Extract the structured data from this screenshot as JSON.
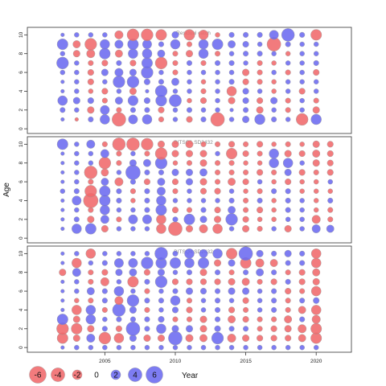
{
  "chart_data": {
    "type": "bubble",
    "ylabel": "Age",
    "xlabel": "Year",
    "x_ticks": [
      2005,
      2010,
      2015,
      2020
    ],
    "y_ticks": [
      0,
      2,
      4,
      6,
      8,
      10
    ],
    "xlim": [
      1999.5,
      2022.5
    ],
    "ylim": [
      -0.5,
      10.8
    ],
    "colors": {
      "negative": "#f0696b",
      "positive": "#6b6af0",
      "outline": "#999999"
    },
    "legend": {
      "values": [
        -6,
        -4,
        -2,
        0,
        2,
        4,
        6
      ],
      "labels": [
        "-6",
        "-4",
        "-2",
        "0",
        "2",
        "4",
        "6"
      ],
      "title": "Year"
    },
    "panels": [
      {
        "title": "Residual catch",
        "years": [
          2002,
          2003,
          2004,
          2005,
          2006,
          2007,
          2008,
          2009,
          2010,
          2011,
          2012,
          2013,
          2014,
          2015,
          2016,
          2017,
          2018,
          2019,
          2020
        ],
        "ages": [
          1,
          2,
          3,
          4,
          5,
          6,
          7,
          8,
          9,
          10
        ],
        "residuals": [
          [
            0.3,
            -0.3,
            0.6,
            2.0,
            -4.0,
            1.8,
            2.0,
            -0.6,
            0.5,
            -0.8,
            0.6,
            -4.0,
            0.5,
            1.0,
            2.3,
            0.6,
            0.5,
            -3.0,
            2.3
          ],
          [
            0.6,
            0.5,
            -1.0,
            1.8,
            -0.6,
            0.6,
            0.6,
            -0.8,
            0.5,
            0.6,
            0.5,
            0.5,
            0.3,
            0.6,
            -1.0,
            0.5,
            -0.6,
            0.5,
            -1.0
          ],
          [
            2.0,
            1.0,
            0.8,
            -0.6,
            1.2,
            2.2,
            0.8,
            2.6,
            3.2,
            -0.5,
            -0.8,
            0.5,
            -1.0,
            0.8,
            -0.8,
            1.0,
            -0.6,
            0.5,
            -0.6
          ],
          [
            0.3,
            0.5,
            -0.5,
            -0.8,
            0.5,
            -1.0,
            0.3,
            3.0,
            0.5,
            0.5,
            -0.6,
            0.5,
            -2.0,
            0.8,
            0.5,
            -0.5,
            0.5,
            -0.8,
            0.5
          ],
          [
            0.3,
            0.5,
            -0.8,
            0.5,
            3.0,
            3.0,
            0.8,
            0.6,
            1.2,
            0.5,
            -0.5,
            0.5,
            0.6,
            -0.8,
            -0.6,
            -0.5,
            0.5,
            0.5,
            0.5
          ],
          [
            0.5,
            0.5,
            -0.8,
            1.0,
            1.5,
            1.0,
            3.0,
            0.5,
            -0.6,
            0.5,
            0.5,
            0.5,
            0.5,
            -1.0,
            -0.6,
            0.5,
            -0.6,
            0.5,
            -0.8
          ],
          [
            3.0,
            0.5,
            -0.6,
            -0.8,
            0.6,
            -0.8,
            2.5,
            -3.0,
            -0.6,
            0.6,
            -0.6,
            0.6,
            0.6,
            0.5,
            -0.6,
            -0.5,
            0.5,
            0.5,
            0.6
          ],
          [
            0.5,
            -1.0,
            -1.5,
            2.5,
            -1.2,
            2.0,
            2.0,
            1.2,
            -0.6,
            -1.0,
            2.0,
            -0.6,
            0.5,
            0.6,
            0.6,
            0.5,
            -0.5,
            0.5,
            0.5
          ],
          [
            2.5,
            -1.2,
            -3.0,
            2.0,
            1.5,
            2.5,
            1.8,
            0.6,
            2.0,
            -0.6,
            2.0,
            2.5,
            1.2,
            0.8,
            0.5,
            -4.0,
            0.6,
            0.5,
            0.5
          ],
          [
            0.3,
            0.5,
            0.5,
            0.5,
            -1.5,
            -3.0,
            -3.0,
            -2.5,
            1.0,
            -2.5,
            -2.0,
            -0.5,
            0.6,
            0.6,
            0.6,
            1.8,
            3.5,
            0.6,
            -2.5
          ]
        ]
      },
      {
        "title": "BITSQ1.SD2432",
        "years": [
          2002,
          2003,
          2004,
          2005,
          2006,
          2007,
          2008,
          2009,
          2010,
          2011,
          2012,
          2013,
          2014,
          2015,
          2016,
          2017,
          2018,
          2019,
          2020,
          2021
        ],
        "ages": [
          1,
          2,
          3,
          4,
          5,
          6,
          7,
          8,
          9,
          10
        ],
        "residuals": [
          [
            0.3,
            2.0,
            2.5,
            -1.0,
            0.5,
            0.5,
            0.5,
            -2.0,
            -4.0,
            -1.0,
            -1.5,
            -2.0,
            0.5,
            -1.0,
            -0.6,
            0.5,
            -1.0,
            0.5,
            1.5,
            1.2
          ],
          [
            0.3,
            0.6,
            -1.0,
            1.5,
            -0.6,
            1.8,
            1.8,
            -2.0,
            0.6,
            2.5,
            1.0,
            -1.0,
            3.0,
            -0.8,
            -0.5,
            -0.5,
            0.5,
            0.5,
            -1.5,
            -0.6
          ],
          [
            0.3,
            0.5,
            -0.6,
            2.0,
            0.5,
            0.5,
            0.6,
            2.5,
            -0.8,
            -0.6,
            0.6,
            -0.8,
            1.2,
            -0.6,
            -0.8,
            -0.5,
            0.6,
            0.5,
            -0.5,
            -0.6
          ],
          [
            0.3,
            1.8,
            -4.5,
            2.5,
            0.6,
            -0.5,
            0.6,
            2.0,
            0.5,
            0.5,
            0.5,
            0.5,
            0.6,
            -0.6,
            0.6,
            -0.5,
            0.6,
            0.5,
            -0.5,
            0.6
          ],
          [
            0.5,
            0.6,
            -3.0,
            2.5,
            0.6,
            -0.6,
            0.6,
            1.5,
            -0.6,
            0.5,
            -0.8,
            -0.8,
            0.5,
            -0.5,
            -0.6,
            0.6,
            0.6,
            -0.5,
            -0.5,
            -0.5
          ],
          [
            0.3,
            0.5,
            -0.6,
            1.2,
            -1.5,
            0.6,
            -0.8,
            1.2,
            -0.8,
            1.0,
            -1.0,
            -0.6,
            -1.2,
            -0.8,
            0.5,
            -0.5,
            -0.8,
            -0.5,
            -0.5,
            0.5
          ],
          [
            0.3,
            0.5,
            -3.5,
            -1.2,
            0.5,
            4.5,
            0.6,
            0.6,
            1.0,
            1.0,
            1.2,
            -0.6,
            -0.6,
            -0.6,
            -0.8,
            -0.6,
            1.0,
            -0.8,
            -0.6,
            -0.8
          ],
          [
            0.3,
            0.5,
            0.5,
            -3.0,
            -0.6,
            1.0,
            1.2,
            3.0,
            -0.5,
            -0.6,
            -1.0,
            -0.6,
            -0.6,
            -0.5,
            -0.5,
            2.0,
            2.0,
            0.5,
            -1.0,
            -0.8
          ],
          [
            0.3,
            0.5,
            0.5,
            1.5,
            -0.6,
            0.5,
            -0.6,
            -3.0,
            -1.0,
            -1.0,
            -1.0,
            0.5,
            -2.5,
            -0.8,
            -0.6,
            2.0,
            -1.0,
            -0.8,
            -1.2,
            -0.8
          ],
          [
            2.5,
            0.5,
            1.5,
            -0.6,
            -3.5,
            -3.5,
            -3.0,
            -1.0,
            -1.0,
            -1.2,
            -0.6,
            -0.6,
            -0.8,
            -0.6,
            -0.8,
            -0.5,
            -0.6,
            -0.5,
            -1.0,
            -0.8
          ]
        ]
      },
      {
        "title": "BITSQ4.SD2432",
        "years": [
          2002,
          2003,
          2004,
          2005,
          2006,
          2007,
          2008,
          2009,
          2010,
          2011,
          2012,
          2013,
          2014,
          2015,
          2016,
          2017,
          2018,
          2019,
          2020
        ],
        "ages": [
          0,
          1,
          2,
          3,
          4,
          5,
          6,
          7,
          8,
          9,
          10
        ],
        "residuals": [
          [
            0.3,
            0.5,
            0.5,
            0.5,
            0.5,
            0.5,
            0.5,
            0.5,
            0.5,
            0.5,
            0.5,
            0.5,
            0.5,
            0.5,
            0.5,
            0.5,
            0.5,
            0.5,
            0.5
          ],
          [
            -2.5,
            -1.0,
            1.5,
            -3.0,
            -2.0,
            1.0,
            -1.0,
            -1.0,
            4.0,
            -1.2,
            -1.2,
            3.0,
            -1.5,
            -1.0,
            -0.8,
            -0.8,
            -0.8,
            -1.2,
            -2.5
          ],
          [
            -3.0,
            -2.5,
            -1.0,
            0.6,
            -0.8,
            4.0,
            0.6,
            2.0,
            1.0,
            1.0,
            -1.0,
            0.8,
            0.6,
            0.6,
            -0.6,
            -0.8,
            -1.0,
            -1.5,
            -2.5
          ],
          [
            2.5,
            -1.0,
            2.0,
            0.5,
            0.6,
            0.6,
            0.6,
            0.8,
            -0.6,
            -0.6,
            -1.0,
            0.6,
            -1.2,
            -0.8,
            -0.6,
            -0.6,
            -1.2,
            0.6,
            -1.5
          ],
          [
            0.3,
            -2.0,
            2.0,
            -0.6,
            3.5,
            1.0,
            -0.6,
            0.5,
            0.8,
            -0.8,
            0.5,
            0.6,
            -0.8,
            -0.6,
            0.5,
            0.6,
            -0.6,
            -1.2,
            -2.0
          ],
          [
            0.3,
            -0.5,
            -0.6,
            0.6,
            -1.5,
            3.0,
            0.6,
            0.6,
            2.0,
            -0.6,
            0.5,
            0.6,
            0.5,
            -0.8,
            0.5,
            0.6,
            -0.6,
            0.6,
            0.8
          ],
          [
            0.3,
            0.5,
            1.2,
            0.6,
            2.0,
            0.5,
            -0.6,
            0.5,
            0.6,
            1.0,
            0.8,
            0.6,
            1.0,
            1.0,
            0.5,
            0.6,
            -0.8,
            -0.6,
            -2.0
          ],
          [
            0.3,
            0.5,
            -0.6,
            -1.5,
            0.5,
            -2.5,
            0.6,
            3.0,
            -0.8,
            -0.8,
            -0.8,
            -0.8,
            -1.0,
            -1.2,
            -0.6,
            -0.8,
            0.6,
            -0.8,
            -1.0
          ],
          [
            -1.0,
            1.5,
            -0.6,
            -0.8,
            1.0,
            1.2,
            -0.8,
            1.0,
            0.5,
            0.6,
            -1.0,
            0.6,
            -0.6,
            0.6,
            1.2,
            0.6,
            -0.6,
            -0.8,
            -1.2
          ],
          [
            0.3,
            -2.0,
            0.5,
            0.6,
            1.8,
            1.8,
            3.0,
            2.5,
            2.5,
            2.0,
            2.5,
            -1.0,
            1.0,
            -2.5,
            -1.5,
            -1.2,
            0.6,
            0.6,
            -2.0
          ],
          [
            0.3,
            0.5,
            -2.0,
            0.5,
            0.5,
            0.5,
            0.5,
            3.5,
            0.6,
            2.0,
            1.5,
            2.0,
            -2.5,
            4.0,
            1.0,
            0.6,
            1.0,
            0.6,
            -2.0
          ]
        ]
      }
    ]
  }
}
